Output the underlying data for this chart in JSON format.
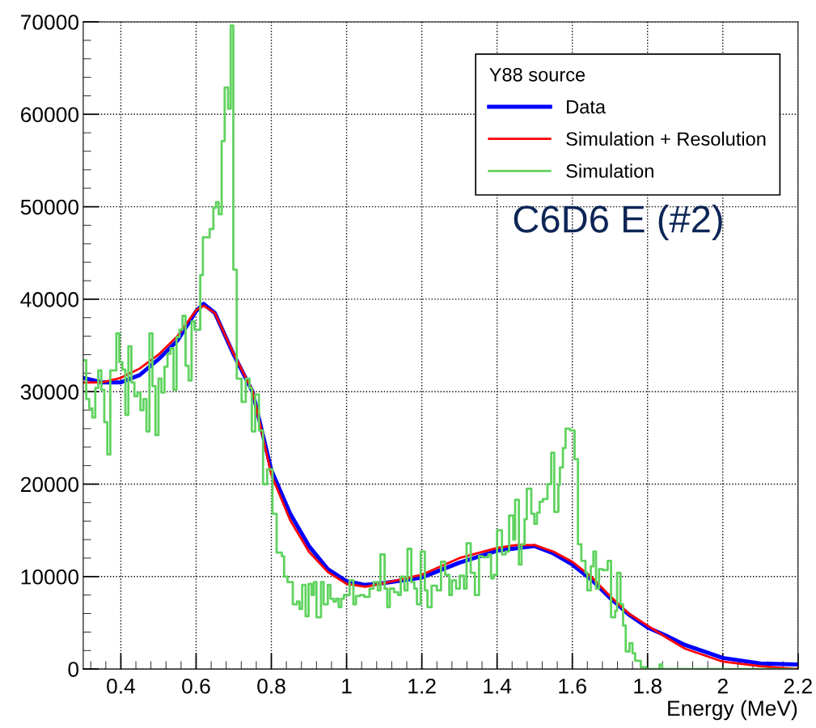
{
  "chart_data": {
    "type": "step",
    "xlabel": "Energy (MeV)",
    "legend_title": "Y88 source",
    "annotations": [
      "C6D6 E (#2)"
    ],
    "xlim": [
      0.3,
      2.2
    ],
    "ylim": [
      0,
      70000
    ],
    "xticks": [
      0.4,
      0.6,
      0.8,
      1,
      1.2,
      1.4,
      1.6,
      1.8,
      2,
      2.2
    ],
    "yticks": [
      0,
      10000,
      20000,
      30000,
      40000,
      50000,
      60000,
      70000
    ],
    "grid": true,
    "legend": "top right",
    "line_style": "solid",
    "marker": "none",
    "series": [
      {
        "name": "Data",
        "type": "line",
        "color": "#0000ff",
        "x": [
          0.3,
          0.35,
          0.4,
          0.45,
          0.5,
          0.55,
          0.6,
          0.62,
          0.65,
          0.7,
          0.75,
          0.8,
          0.85,
          0.9,
          0.95,
          1.0,
          1.05,
          1.1,
          1.2,
          1.3,
          1.4,
          1.5,
          1.55,
          1.6,
          1.65,
          1.7,
          1.75,
          1.8,
          1.85,
          1.9,
          2.0,
          2.1,
          2.2
        ],
        "values": [
          31500,
          31000,
          31000,
          31800,
          33500,
          35500,
          38700,
          39500,
          38500,
          34000,
          30000,
          21500,
          16800,
          13300,
          10800,
          9500,
          9100,
          9300,
          9900,
          11500,
          12800,
          13300,
          12500,
          11300,
          9700,
          7700,
          5900,
          4500,
          3600,
          2600,
          1200,
          600,
          500
        ]
      },
      {
        "name": "Simulation + Resolution",
        "type": "line",
        "color": "#ff0000",
        "x": [
          0.3,
          0.35,
          0.4,
          0.45,
          0.5,
          0.55,
          0.6,
          0.62,
          0.65,
          0.7,
          0.75,
          0.8,
          0.85,
          0.9,
          0.95,
          1.0,
          1.05,
          1.1,
          1.2,
          1.3,
          1.4,
          1.45,
          1.5,
          1.55,
          1.6,
          1.65,
          1.7,
          1.75,
          1.8,
          1.85,
          1.9,
          2.0,
          2.1,
          2.2
        ],
        "values": [
          31000,
          31000,
          31500,
          32500,
          34000,
          36000,
          38800,
          39300,
          38500,
          34100,
          30100,
          21000,
          16100,
          12700,
          10500,
          9200,
          8900,
          9300,
          10200,
          12000,
          13100,
          13400,
          13400,
          12700,
          11600,
          10000,
          7900,
          6000,
          4700,
          3400,
          2200,
          800,
          300,
          0
        ]
      },
      {
        "name": "Simulation",
        "color": "#5fd35f",
        "x": [
          0.3,
          0.308,
          0.316,
          0.324,
          0.332,
          0.34,
          0.348,
          0.356,
          0.364,
          0.372,
          0.38,
          0.388,
          0.396,
          0.404,
          0.412,
          0.42,
          0.428,
          0.436,
          0.444,
          0.452,
          0.46,
          0.468,
          0.476,
          0.484,
          0.492,
          0.5,
          0.508,
          0.516,
          0.524,
          0.532,
          0.54,
          0.548,
          0.556,
          0.564,
          0.572,
          0.58,
          0.588,
          0.596,
          0.611,
          0.618,
          0.636,
          0.646,
          0.653,
          0.66,
          0.668,
          0.676,
          0.685,
          0.692,
          0.699,
          0.708,
          0.721,
          0.732,
          0.742,
          0.748,
          0.757,
          0.767,
          0.778,
          0.789,
          0.803,
          0.814,
          0.828,
          0.834,
          0.843,
          0.857,
          0.868,
          0.875,
          0.882,
          0.891,
          0.899,
          0.907,
          0.913,
          0.92,
          0.932,
          0.939,
          0.95,
          0.957,
          0.965,
          0.972,
          0.979,
          0.986,
          0.993,
          1.008,
          1.018,
          1.025,
          1.036,
          1.047,
          1.061,
          1.072,
          1.083,
          1.09,
          1.101,
          1.108,
          1.115,
          1.126,
          1.137,
          1.144,
          1.154,
          1.162,
          1.172,
          1.18,
          1.187,
          1.197,
          1.208,
          1.215,
          1.226,
          1.24,
          1.251,
          1.262,
          1.273,
          1.28,
          1.291,
          1.301,
          1.312,
          1.319,
          1.33,
          1.341,
          1.352,
          1.362,
          1.377,
          1.384,
          1.391,
          1.4,
          1.413,
          1.423,
          1.432,
          1.443,
          1.448,
          1.458,
          1.465,
          1.473,
          1.479,
          1.491,
          1.499,
          1.506,
          1.513,
          1.522,
          1.534,
          1.544,
          1.552,
          1.563,
          1.567,
          1.575,
          1.582,
          1.594,
          1.606,
          1.615,
          1.624,
          1.635,
          1.64,
          1.649,
          1.656,
          1.663,
          1.671,
          1.681,
          1.694,
          1.703,
          1.714,
          1.719,
          1.728,
          1.735,
          1.742,
          1.752,
          1.76,
          1.767,
          1.782,
          1.796,
          1.832,
          1.839,
          2.19
        ],
        "values": [
          33400,
          29200,
          28200,
          27200,
          30400,
          32300,
          30200,
          26700,
          23200,
          32300,
          32300,
          36300,
          33200,
          32400,
          27500,
          34900,
          31000,
          29500,
          29900,
          28000,
          29200,
          25700,
          36300,
          30600,
          25300,
          31400,
          29900,
          32700,
          34100,
          34700,
          30200,
          35900,
          36700,
          38200,
          32800,
          31200,
          37600,
          36700,
          42600,
          46700,
          47600,
          49900,
          50500,
          49200,
          57100,
          62900,
          60600,
          69600,
          43200,
          31400,
          28900,
          31400,
          30400,
          25700,
          29700,
          25800,
          20000,
          21600,
          16800,
          12600,
          12200,
          10000,
          9400,
          7000,
          7300,
          6500,
          9100,
          5700,
          9200,
          8000,
          9400,
          5600,
          9400,
          7000,
          9100,
          7600,
          7300,
          7600,
          6700,
          7600,
          8000,
          9600,
          7000,
          7900,
          8000,
          7800,
          8700,
          9400,
          8500,
          12400,
          8700,
          6700,
          8700,
          8300,
          8000,
          10000,
          8500,
          13000,
          9400,
          8700,
          7000,
          12700,
          8500,
          6700,
          9000,
          8500,
          11600,
          10200,
          8000,
          9600,
          8700,
          10100,
          8700,
          13600,
          10400,
          8000,
          12200,
          12100,
          12400,
          9800,
          10200,
          15000,
          12400,
          12700,
          16600,
          14000,
          18300,
          11300,
          13500,
          16200,
          19500,
          16800,
          15700,
          16900,
          18100,
          18400,
          20000,
          23400,
          17000,
          19900,
          21800,
          23900,
          26000,
          25800,
          22700,
          13500,
          11700,
          10400,
          8500,
          11100,
          12700,
          8700,
          10800,
          10700,
          11700,
          5600,
          6300,
          10400,
          7000,
          4700,
          1900,
          2800,
          1700,
          900,
          200,
          0,
          500,
          0,
          0
        ]
      }
    ]
  }
}
